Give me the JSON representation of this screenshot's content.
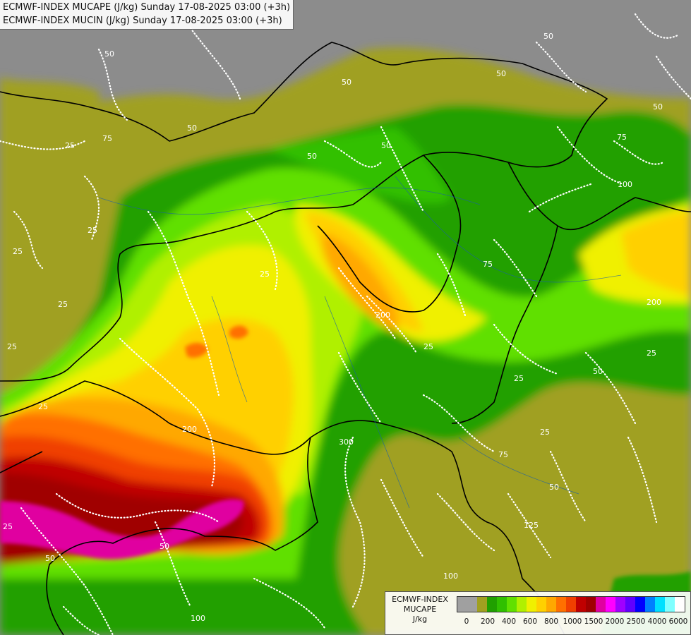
{
  "titles": {
    "line1": "ECMWF-INDEX MUCAPE (J/kg) Sunday 17-08-2025 03:00 (+3h)",
    "line2": "ECMWF-INDEX MUCIN (J/kg) Sunday 17-08-2025 03:00 (+3h)"
  },
  "legend": {
    "title_line1": "ECMWF-INDEX",
    "title_line2": "MUCAPE",
    "title_line3": "J/kg",
    "colors": [
      "#a0a0a0",
      "#a0a0a0",
      "#a0a020",
      "#20a000",
      "#30c000",
      "#60e000",
      "#b0f000",
      "#f0f000",
      "#ffd000",
      "#ffa800",
      "#ff7000",
      "#f04000",
      "#c00000",
      "#a00000",
      "#e000a0",
      "#ff00ff",
      "#a000ff",
      "#6000ff",
      "#0000ff",
      "#0080ff",
      "#00e0ff",
      "#80ffff",
      "#ffffff"
    ],
    "tick_labels": [
      "0",
      "200",
      "400",
      "600",
      "800",
      "1000",
      "1500",
      "2000",
      "2500",
      "4000",
      "6000"
    ]
  },
  "cin_labels": [
    "50",
    "50",
    "50",
    "50",
    "50",
    "25",
    "25",
    "75",
    "50",
    "50",
    "100",
    "25",
    "25",
    "25",
    "75",
    "200",
    "300",
    "25",
    "50",
    "25",
    "50",
    "100",
    "25",
    "200",
    "200",
    "25",
    "25",
    "50",
    "75",
    "125",
    "75",
    "50",
    "25",
    "25",
    "50",
    "100"
  ]
}
